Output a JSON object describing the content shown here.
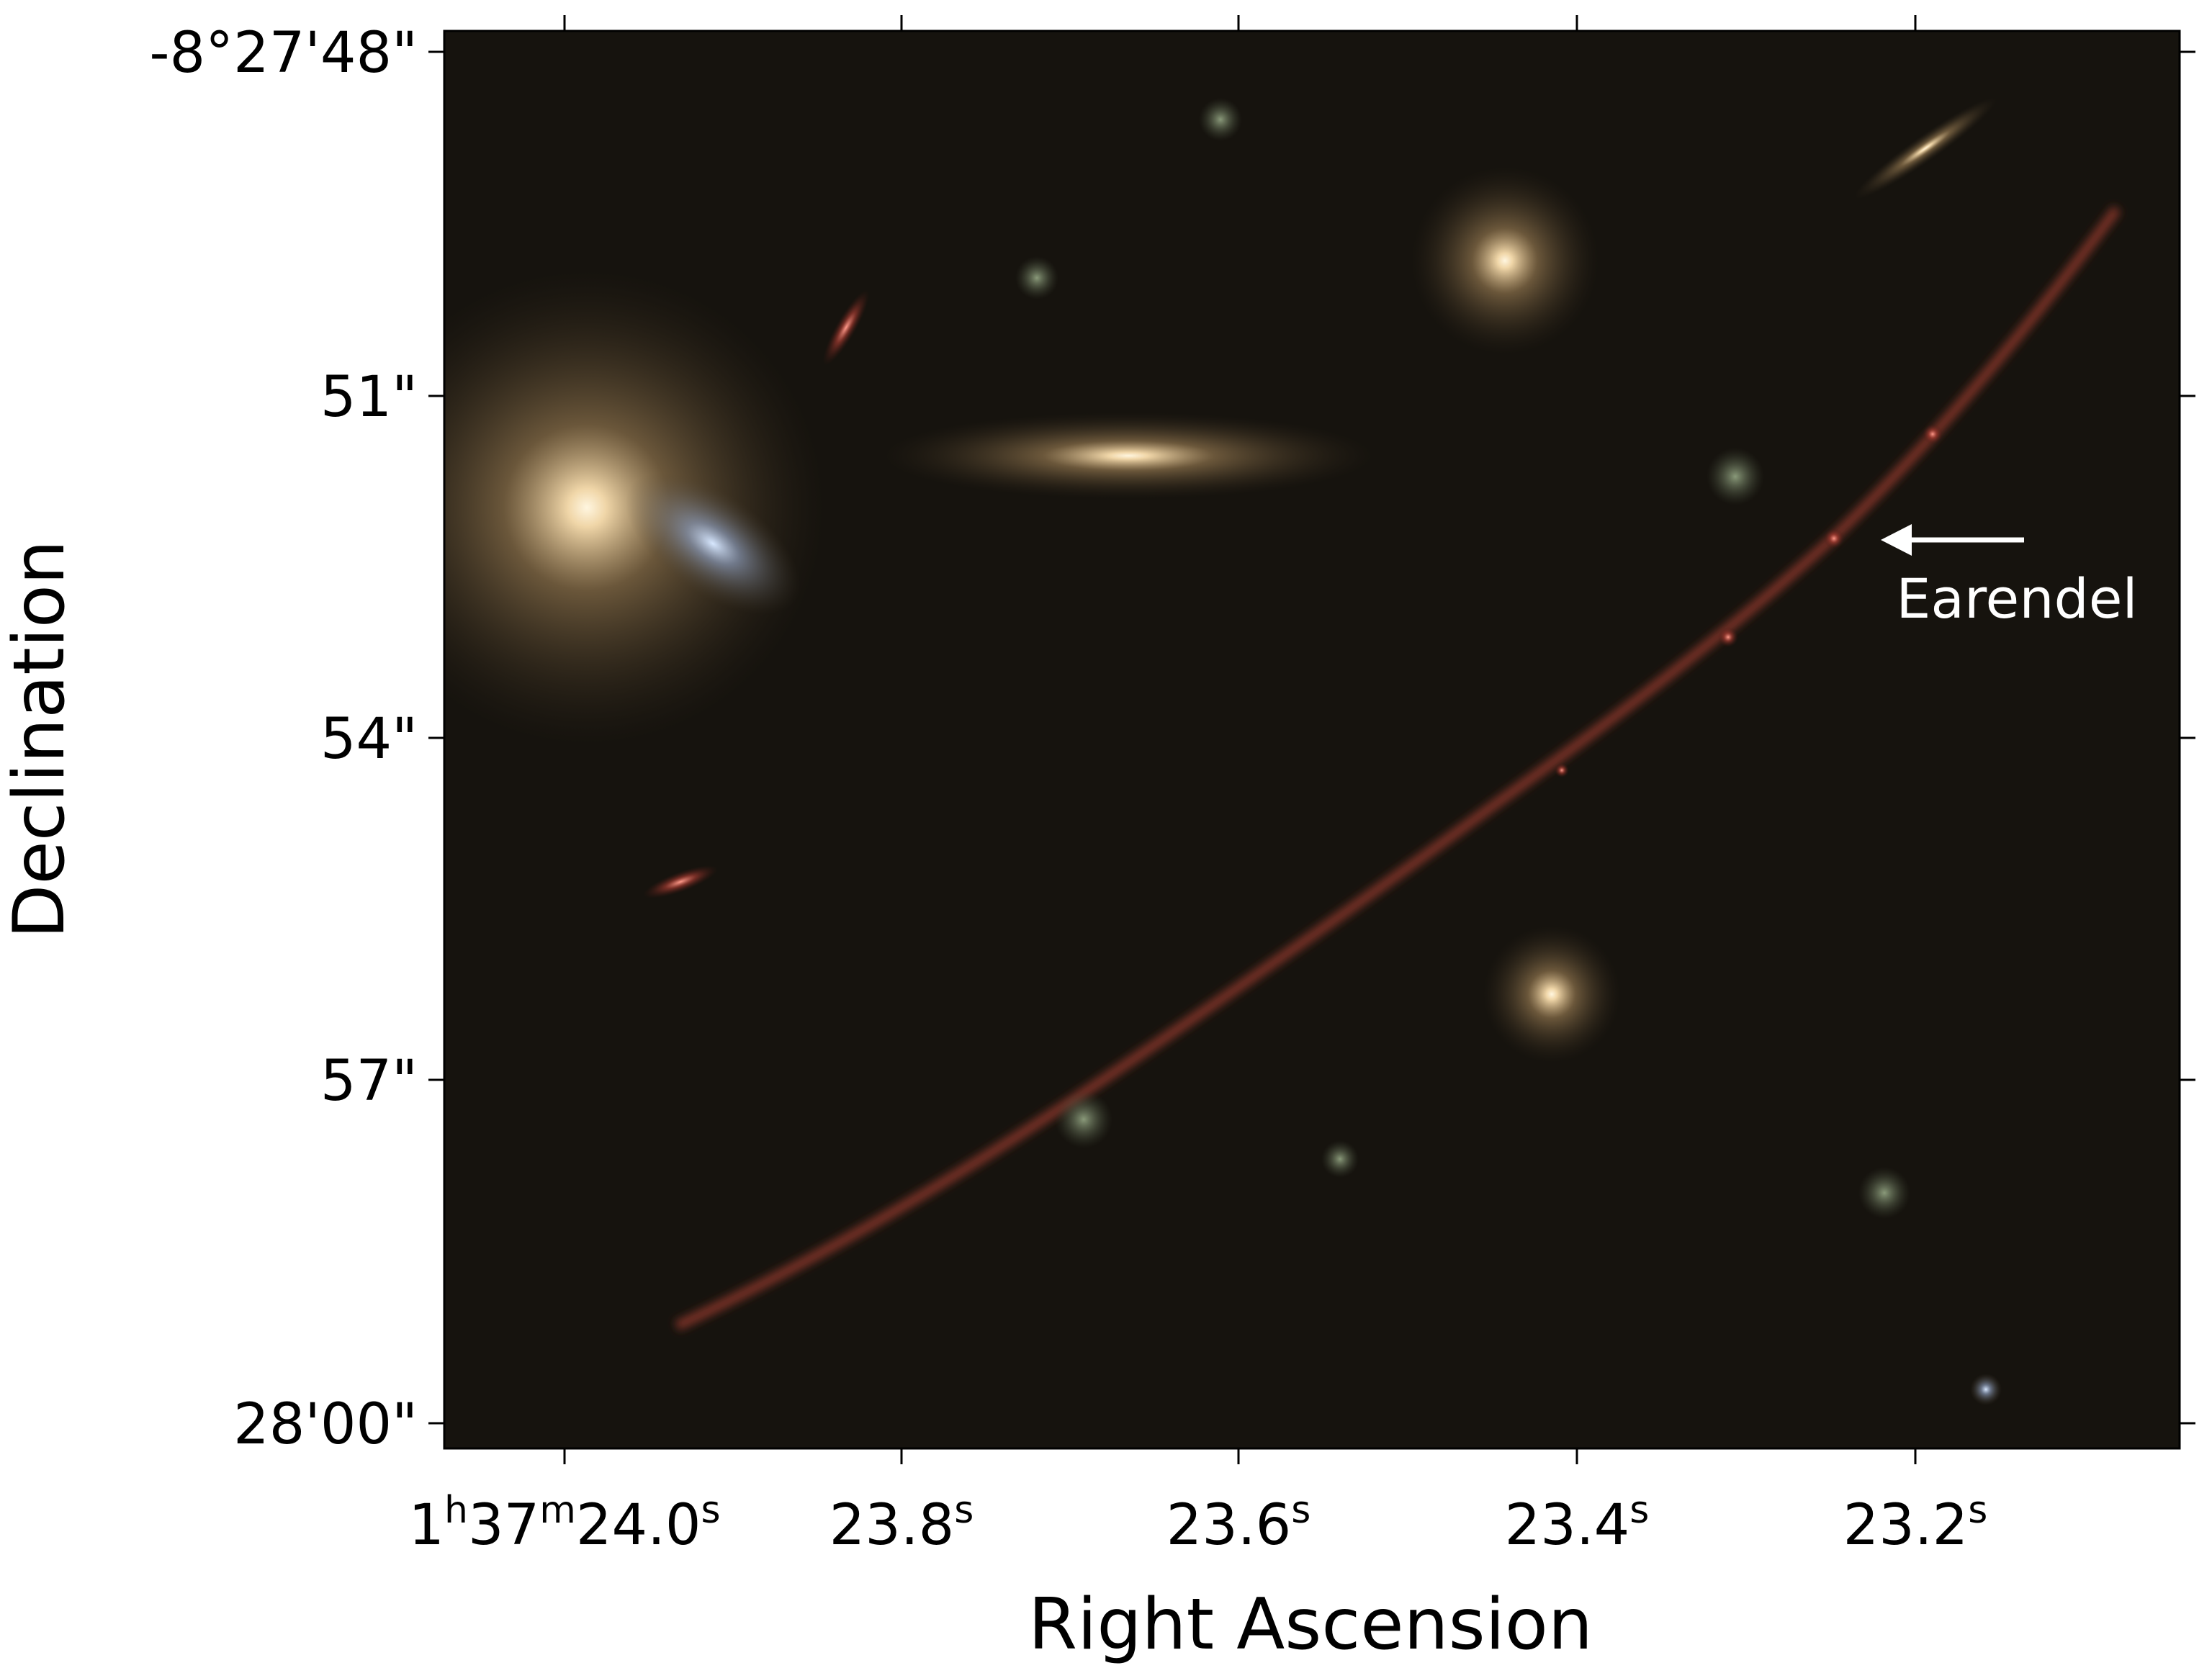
{
  "figure": {
    "x_axis_label": "Right Ascension",
    "y_axis_label": "Declination",
    "x_ticks": [
      {
        "parts": [
          "1",
          "h",
          "37",
          "m",
          "24.0",
          "s"
        ]
      },
      {
        "parts": [
          "23.8",
          "s"
        ]
      },
      {
        "parts": [
          "23.6",
          "s"
        ]
      },
      {
        "parts": [
          "23.4",
          "s"
        ]
      },
      {
        "parts": [
          "23.2",
          "s"
        ]
      }
    ],
    "y_ticks": [
      "-8°27'48\"",
      "51\"",
      "54\"",
      "57\"",
      "28'00\""
    ],
    "annotation": "Earendel"
  }
}
